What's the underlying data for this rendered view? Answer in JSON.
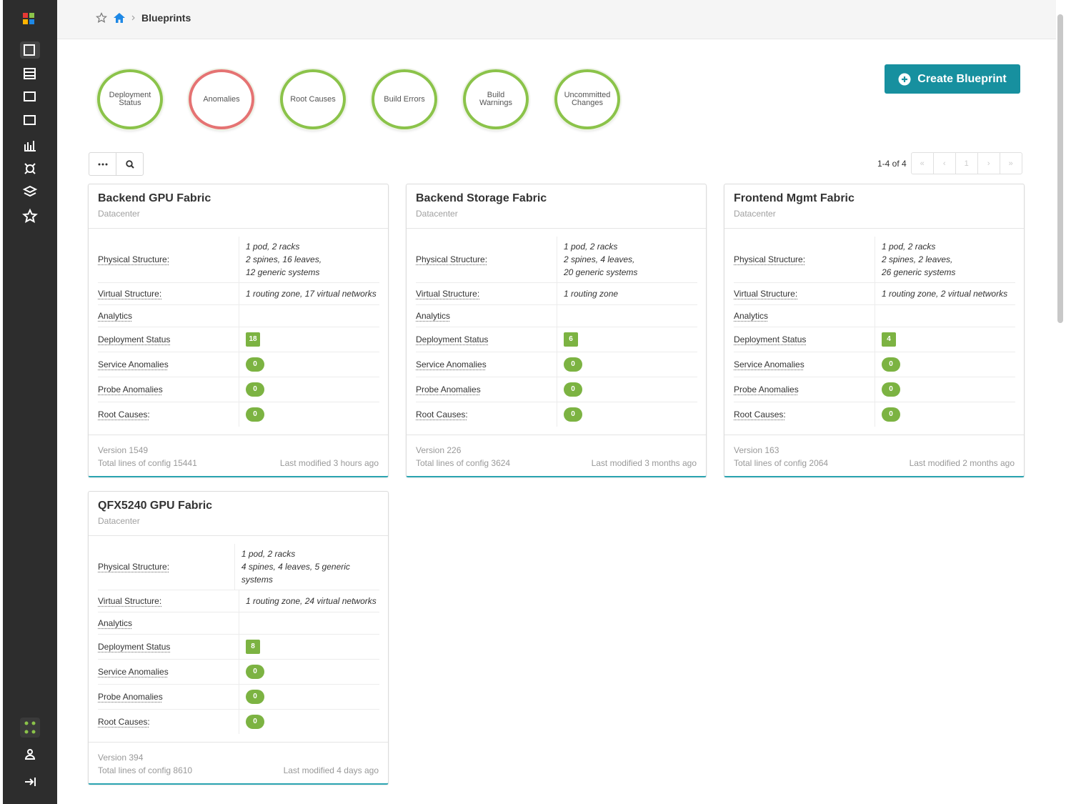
{
  "breadcrumb": {
    "current": "Blueprints"
  },
  "status_circles": [
    {
      "label": "Deployment Status",
      "color": "#8bc34a"
    },
    {
      "label": "Anomalies",
      "color": "#e57373"
    },
    {
      "label": "Root Causes",
      "color": "#8bc34a"
    },
    {
      "label": "Build Errors",
      "color": "#8bc34a"
    },
    {
      "label": "Build Warnings",
      "color": "#8bc34a"
    },
    {
      "label": "Uncommitted Changes",
      "color": "#8bc34a"
    }
  ],
  "create_button": "Create Blueprint",
  "pagination": {
    "summary": "1-4 of 4",
    "page": "1"
  },
  "blueprints": [
    {
      "name": "Backend GPU Fabric",
      "type": "Datacenter",
      "rows": [
        {
          "label": "Physical Structure:",
          "value": [
            "1 pod, 2 racks",
            "2 spines, 16 leaves,",
            "12 generic systems"
          ]
        },
        {
          "label": "Virtual Structure:",
          "value": [
            "1 routing zone, 17 virtual networks"
          ]
        },
        {
          "label": "Analytics"
        },
        {
          "label": "Deployment Status",
          "badge": 18,
          "badge_style": "square"
        },
        {
          "label": "Service Anomalies",
          "badge": 0,
          "badge_style": "pill"
        },
        {
          "label": "Probe Anomalies",
          "badge": 0,
          "badge_style": "pill"
        },
        {
          "label": "Root Causes:",
          "badge": 0,
          "badge_style": "pill"
        }
      ],
      "version": "Version 1549",
      "config": "Total lines of config 15441",
      "modified": "Last modified 3 hours ago"
    },
    {
      "name": "Backend Storage Fabric",
      "type": "Datacenter",
      "rows": [
        {
          "label": "Physical Structure:",
          "value": [
            "1 pod, 2 racks",
            "2 spines, 4 leaves,",
            "20 generic systems"
          ]
        },
        {
          "label": "Virtual Structure:",
          "value": [
            "1 routing zone"
          ]
        },
        {
          "label": "Analytics"
        },
        {
          "label": "Deployment Status",
          "badge": 6,
          "badge_style": "square"
        },
        {
          "label": "Service Anomalies",
          "badge": 0,
          "badge_style": "pill"
        },
        {
          "label": "Probe Anomalies",
          "badge": 0,
          "badge_style": "pill"
        },
        {
          "label": "Root Causes:",
          "badge": 0,
          "badge_style": "pill"
        }
      ],
      "version": "Version 226",
      "config": "Total lines of config 3624",
      "modified": "Last modified 3 months ago"
    },
    {
      "name": "Frontend Mgmt Fabric",
      "type": "Datacenter",
      "rows": [
        {
          "label": "Physical Structure:",
          "value": [
            "1 pod, 2 racks",
            "2 spines, 2 leaves,",
            "26 generic systems"
          ]
        },
        {
          "label": "Virtual Structure:",
          "value": [
            "1 routing zone, 2 virtual networks"
          ]
        },
        {
          "label": "Analytics"
        },
        {
          "label": "Deployment Status",
          "badge": 4,
          "badge_style": "square"
        },
        {
          "label": "Service Anomalies",
          "badge": 0,
          "badge_style": "pill"
        },
        {
          "label": "Probe Anomalies",
          "badge": 0,
          "badge_style": "pill"
        },
        {
          "label": "Root Causes:",
          "badge": 0,
          "badge_style": "pill"
        }
      ],
      "version": "Version 163",
      "config": "Total lines of config 2064",
      "modified": "Last modified 2 months ago"
    },
    {
      "name": "QFX5240 GPU Fabric",
      "type": "Datacenter",
      "rows": [
        {
          "label": "Physical Structure:",
          "value": [
            "1 pod, 2 racks",
            "4 spines, 4 leaves, 5 generic systems"
          ]
        },
        {
          "label": "Virtual Structure:",
          "value": [
            "1 routing zone, 24 virtual networks"
          ]
        },
        {
          "label": "Analytics"
        },
        {
          "label": "Deployment Status",
          "badge": 8,
          "badge_style": "square"
        },
        {
          "label": "Service Anomalies",
          "badge": 0,
          "badge_style": "pill"
        },
        {
          "label": "Probe Anomalies",
          "badge": 0,
          "badge_style": "pill"
        },
        {
          "label": "Root Causes:",
          "badge": 0,
          "badge_style": "pill"
        }
      ],
      "version": "Version 394",
      "config": "Total lines of config 8610",
      "modified": "Last modified 4 days ago"
    }
  ]
}
